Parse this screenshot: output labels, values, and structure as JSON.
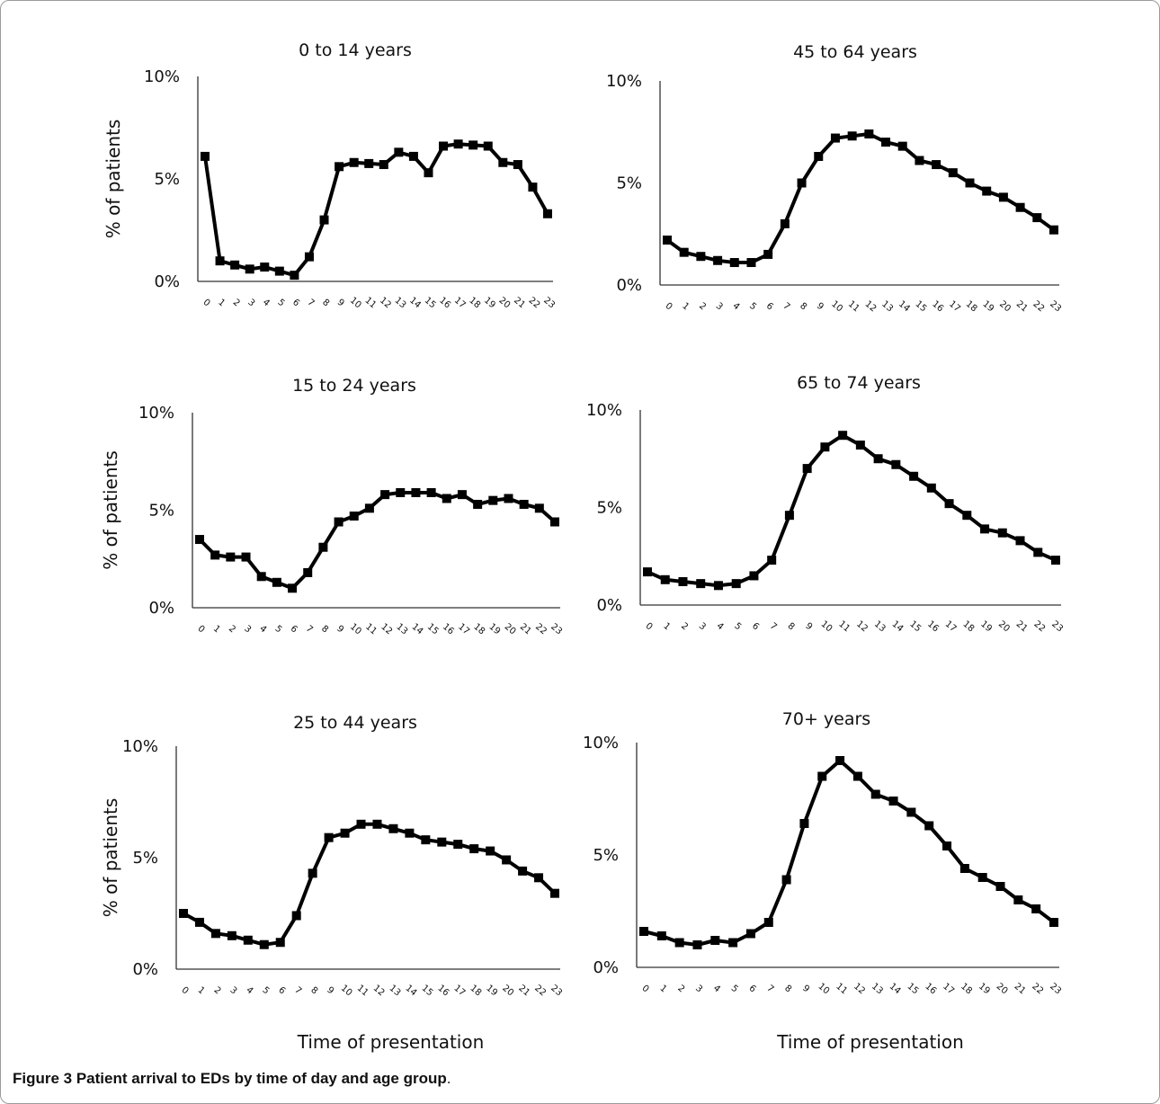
{
  "caption": {
    "label": "Figure 3",
    "text": " Patient arrival to EDs by time of day and age group",
    "period": "."
  },
  "colors": {
    "line": "#000000",
    "axis": "#333333"
  },
  "chart_data": [
    {
      "type": "line",
      "title": "0 to 14 years",
      "xlabel": "",
      "ylabel": "% of patients",
      "x": [
        0,
        1,
        2,
        3,
        4,
        5,
        6,
        7,
        8,
        9,
        10,
        11,
        12,
        13,
        14,
        15,
        16,
        17,
        18,
        19,
        20,
        21,
        22,
        23
      ],
      "yticks": [
        "0%",
        "5%",
        "10%"
      ],
      "ylim": [
        0,
        10
      ],
      "series": [
        {
          "values": [
            6.1,
            1.0,
            0.8,
            0.6,
            0.7,
            0.5,
            0.3,
            1.2,
            3.0,
            5.6,
            5.8,
            5.75,
            5.7,
            6.3,
            6.1,
            5.3,
            6.6,
            6.7,
            6.65,
            6.6,
            5.8,
            5.7,
            4.6,
            3.3
          ]
        }
      ]
    },
    {
      "type": "line",
      "title": "45 to 64 years",
      "xlabel": "",
      "ylabel": "",
      "x": [
        0,
        1,
        2,
        3,
        4,
        5,
        6,
        7,
        8,
        9,
        10,
        11,
        12,
        13,
        14,
        15,
        16,
        17,
        18,
        19,
        20,
        21,
        22,
        23
      ],
      "yticks": [
        "0%",
        "5%",
        "10%"
      ],
      "ylim": [
        0,
        10
      ],
      "series": [
        {
          "values": [
            2.2,
            1.6,
            1.4,
            1.2,
            1.1,
            1.1,
            1.5,
            3.0,
            5.0,
            6.3,
            7.2,
            7.3,
            7.4,
            7.0,
            6.8,
            6.1,
            5.9,
            5.5,
            5.0,
            4.6,
            4.3,
            3.8,
            3.3,
            2.7
          ]
        }
      ]
    },
    {
      "type": "line",
      "title": "15 to 24 years",
      "xlabel": "",
      "ylabel": "% of patients",
      "x": [
        0,
        1,
        2,
        3,
        4,
        5,
        6,
        7,
        8,
        9,
        10,
        11,
        12,
        13,
        14,
        15,
        16,
        17,
        18,
        19,
        20,
        21,
        22,
        23
      ],
      "yticks": [
        "0%",
        "5%",
        "10%"
      ],
      "ylim": [
        0,
        10
      ],
      "series": [
        {
          "values": [
            3.5,
            2.7,
            2.6,
            2.6,
            1.6,
            1.3,
            1.0,
            1.8,
            3.1,
            4.4,
            4.7,
            5.1,
            5.8,
            5.9,
            5.9,
            5.9,
            5.6,
            5.8,
            5.3,
            5.5,
            5.6,
            5.3,
            5.1,
            4.4
          ]
        }
      ]
    },
    {
      "type": "line",
      "title": "65 to 74 years",
      "xlabel": "",
      "ylabel": "",
      "x": [
        0,
        1,
        2,
        3,
        4,
        5,
        6,
        7,
        8,
        9,
        10,
        11,
        12,
        13,
        14,
        15,
        16,
        17,
        18,
        19,
        20,
        21,
        22,
        23
      ],
      "yticks": [
        "0%",
        "5%",
        "10%"
      ],
      "ylim": [
        0,
        10
      ],
      "series": [
        {
          "values": [
            1.7,
            1.3,
            1.2,
            1.1,
            1.0,
            1.1,
            1.5,
            2.3,
            4.6,
            7.0,
            8.1,
            8.7,
            8.2,
            7.5,
            7.2,
            6.6,
            6.0,
            5.2,
            4.6,
            3.9,
            3.7,
            3.3,
            2.7,
            2.3
          ]
        }
      ]
    },
    {
      "type": "line",
      "title": "25 to 44 years",
      "xlabel": "Time of presentation",
      "ylabel": "% of patients",
      "x": [
        0,
        1,
        2,
        3,
        4,
        5,
        6,
        7,
        8,
        9,
        10,
        11,
        12,
        13,
        14,
        15,
        16,
        17,
        18,
        19,
        20,
        21,
        22,
        23
      ],
      "yticks": [
        "0%",
        "5%",
        "10%"
      ],
      "ylim": [
        0,
        10
      ],
      "series": [
        {
          "values": [
            2.5,
            2.1,
            1.6,
            1.5,
            1.3,
            1.1,
            1.2,
            2.4,
            4.3,
            5.9,
            6.1,
            6.5,
            6.5,
            6.3,
            6.1,
            5.8,
            5.7,
            5.6,
            5.4,
            5.3,
            4.9,
            4.4,
            4.1,
            3.4
          ]
        }
      ]
    },
    {
      "type": "line",
      "title": "70+ years",
      "xlabel": "Time of presentation",
      "ylabel": "",
      "x": [
        0,
        1,
        2,
        3,
        4,
        5,
        6,
        7,
        8,
        9,
        10,
        11,
        12,
        13,
        14,
        15,
        16,
        17,
        18,
        19,
        20,
        21,
        22,
        23
      ],
      "yticks": [
        "0%",
        "5%",
        "10%"
      ],
      "ylim": [
        0,
        10
      ],
      "series": [
        {
          "values": [
            1.6,
            1.4,
            1.1,
            1.0,
            1.2,
            1.1,
            1.5,
            2.0,
            3.9,
            6.4,
            8.5,
            9.2,
            8.5,
            7.7,
            7.4,
            6.9,
            6.3,
            5.4,
            4.4,
            4.0,
            3.6,
            3.0,
            2.6,
            2.0
          ]
        }
      ]
    }
  ]
}
